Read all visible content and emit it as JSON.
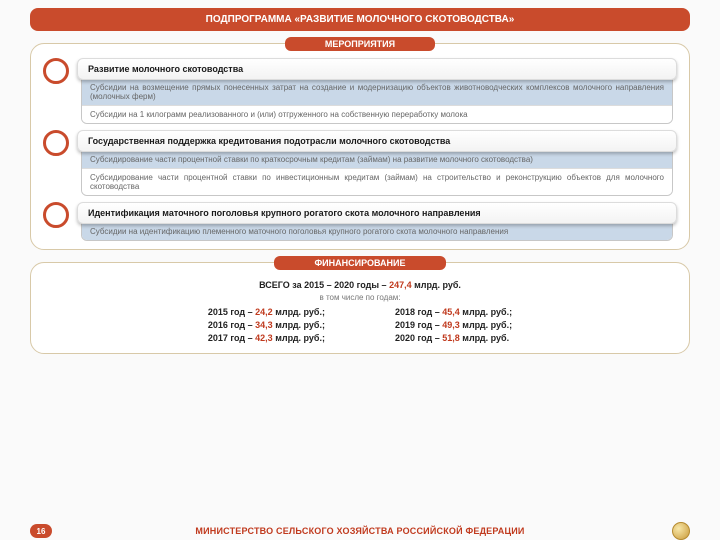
{
  "colors": {
    "accent": "#c94b2c",
    "accent_text": "#c03a1e",
    "sub_blue": "#c9d8e8",
    "border": "#d8c9a8"
  },
  "title": "ПОДПРОГРАММА «РАЗВИТИЕ МОЛОЧНОГО СКОТОВОДСТВА»",
  "activities": {
    "pill": "МЕРОПРИЯТИЯ",
    "items": [
      {
        "title": "Развитие молочного скотоводства",
        "subs": [
          "Субсидии на возмещение прямых понесенных затрат на создание и модернизацию объектов животноводческих комплексов молочного направления (молочных ферм)",
          "Субсидии на 1 килограмм реализованного и (или) отгруженного на собственную переработку молока"
        ]
      },
      {
        "title": "Государственная поддержка кредитования подотрасли молочного скотоводства",
        "subs": [
          "Субсидирование части процентной ставки по краткосрочным кредитам (займам) на развитие молочного скотоводства)",
          "Субсидирование части процентной ставки по инвестиционным кредитам (займам) на строительство и реконструкцию объектов для молочного скотоводства"
        ]
      },
      {
        "title": "Идентификация маточного поголовья крупного рогатого скота молочного направления",
        "subs": [
          "Субсидии на идентификацию племенного маточного поголовья крупного рогатого скота молочного направления"
        ]
      }
    ]
  },
  "financing": {
    "pill": "ФИНАНСИРОВАНИЕ",
    "total_prefix": "ВСЕГО за 2015 – 2020 годы – ",
    "total_amount": "247,4",
    "total_suffix": " млрд. руб.",
    "note": "в том числе по годам:",
    "left": [
      {
        "year": "2015 год – ",
        "amount": "24,2",
        "unit": " млрд. руб.;"
      },
      {
        "year": "2016 год – ",
        "amount": "34,3",
        "unit": " млрд. руб.;"
      },
      {
        "year": "2017 год – ",
        "amount": "42,3",
        "unit": " млрд. руб.;"
      }
    ],
    "right": [
      {
        "year": "2018 год – ",
        "amount": "45,4",
        "unit": " млрд. руб.;"
      },
      {
        "year": "2019 год – ",
        "amount": "49,3",
        "unit": " млрд. руб.;"
      },
      {
        "year": "2020 год – ",
        "amount": "51,8",
        "unit": " млрд. руб."
      }
    ]
  },
  "footer": {
    "page": "16",
    "text": "МИНИСТЕРСТВО СЕЛЬСКОГО ХОЗЯЙСТВА РОССИЙСКОЙ ФЕДЕРАЦИИ"
  }
}
